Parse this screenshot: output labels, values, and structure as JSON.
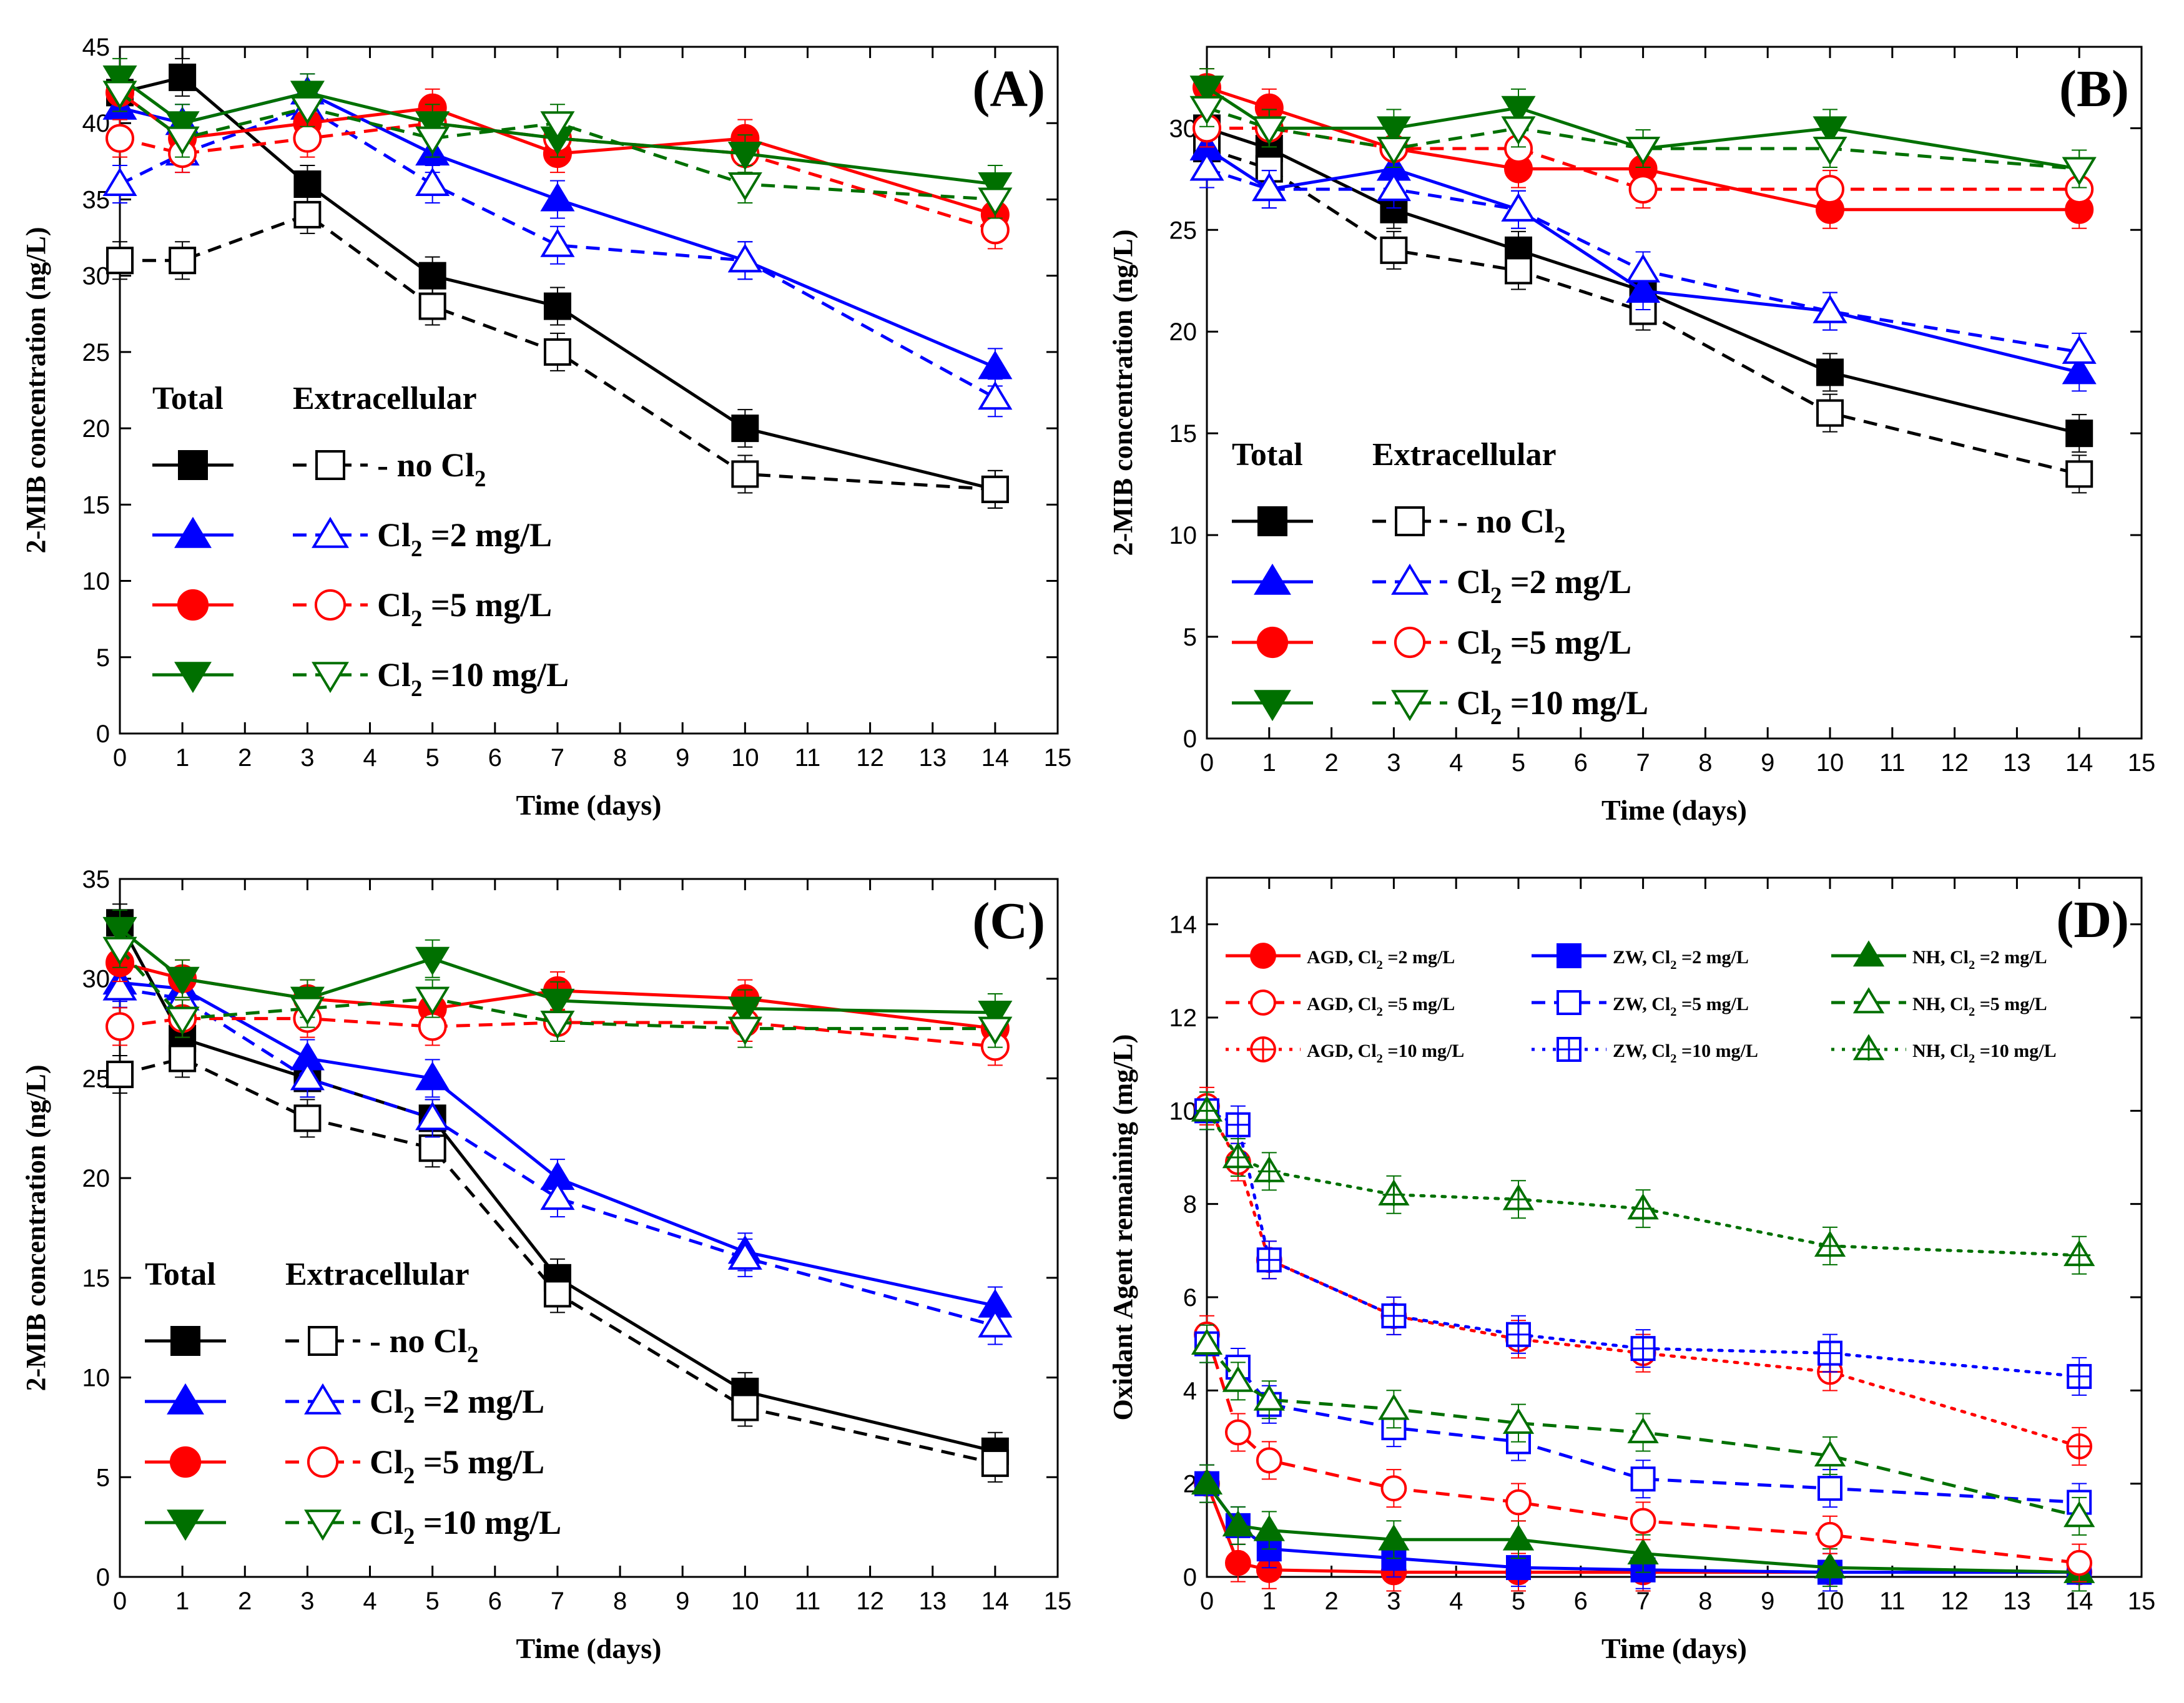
{
  "colors": {
    "no_cl": "#000000",
    "cl2": "#0000ff",
    "cl5": "#ff0000",
    "cl10": "#007000"
  },
  "chart_data": [
    {
      "id": "A",
      "type": "line",
      "panel_label": "(A)",
      "xlabel": "Time (days)",
      "ylabel": "2-MIB concentration (ng/L)",
      "xlim": [
        0,
        15
      ],
      "ylim": [
        0,
        45
      ],
      "xticks": [
        0,
        1,
        2,
        3,
        4,
        5,
        6,
        7,
        8,
        9,
        10,
        11,
        12,
        13,
        14,
        15
      ],
      "yticks": [
        0,
        5,
        10,
        15,
        20,
        25,
        30,
        35,
        40,
        45
      ],
      "x": [
        0,
        1,
        3,
        5,
        7,
        10,
        14
      ],
      "legend": {
        "header_total": "Total",
        "header_extracellular": "Extracellular",
        "placement": "lower-left",
        "labels": [
          "no Cl",
          "Cl =2 mg/L",
          "Cl =5 mg/L",
          "Cl =10 mg/L"
        ],
        "subscript": "2"
      },
      "series": [
        {
          "name": "Total, no Cl2",
          "color": "no_cl",
          "marker": "square",
          "filled": true,
          "dash": "solid",
          "values": [
            42,
            43,
            36,
            30,
            28,
            20,
            16
          ]
        },
        {
          "name": "Extracellular, no Cl2",
          "color": "no_cl",
          "marker": "square",
          "filled": false,
          "dash": "dashed",
          "values": [
            31,
            31,
            34,
            28,
            25,
            17,
            16
          ]
        },
        {
          "name": "Total, Cl2 =2 mg/L",
          "color": "cl2",
          "marker": "tri-up",
          "filled": true,
          "dash": "solid",
          "values": [
            41,
            40,
            42,
            38,
            35,
            31,
            24
          ]
        },
        {
          "name": "Extracellular, Cl2 =2 mg/L",
          "color": "cl2",
          "marker": "tri-up",
          "filled": false,
          "dash": "dashed",
          "values": [
            36,
            38,
            41,
            36,
            32,
            31,
            22
          ]
        },
        {
          "name": "Total, Cl2 =5 mg/L",
          "color": "cl5",
          "marker": "circle",
          "filled": true,
          "dash": "solid",
          "values": [
            42,
            39,
            40,
            41,
            38,
            39,
            34
          ]
        },
        {
          "name": "Extracellular, Cl2 =5 mg/L",
          "color": "cl5",
          "marker": "circle",
          "filled": false,
          "dash": "dashed",
          "values": [
            39,
            38,
            39,
            40,
            39,
            38,
            33
          ]
        },
        {
          "name": "Total, Cl2 =10 mg/L",
          "color": "cl10",
          "marker": "tri-down",
          "filled": true,
          "dash": "solid",
          "values": [
            43,
            40,
            42,
            40,
            39,
            38,
            36
          ]
        },
        {
          "name": "Extracellular, Cl2 =10 mg/L",
          "color": "cl10",
          "marker": "tri-down",
          "filled": false,
          "dash": "dashed",
          "values": [
            42,
            39,
            41,
            39,
            40,
            36,
            35
          ]
        }
      ]
    },
    {
      "id": "B",
      "type": "line",
      "panel_label": "(B)",
      "xlabel": "Time (days)",
      "ylabel": "2-MIB concentration (ng/L)",
      "xlim": [
        0,
        15
      ],
      "ylim": [
        0,
        34
      ],
      "xticks": [
        0,
        1,
        2,
        3,
        4,
        5,
        6,
        7,
        8,
        9,
        10,
        11,
        12,
        13,
        14,
        15
      ],
      "yticks": [
        0,
        5,
        10,
        15,
        20,
        25,
        30
      ],
      "x": [
        0,
        1,
        3,
        5,
        7,
        10,
        14
      ],
      "legend": {
        "header_total": "Total",
        "header_extracellular": "Extracellular",
        "placement": "lower-left",
        "labels": [
          "no Cl",
          "Cl =2 mg/L",
          "Cl =5 mg/L",
          "Cl =10 mg/L"
        ],
        "subscript": "2"
      },
      "series": [
        {
          "name": "Total, no Cl2",
          "color": "no_cl",
          "marker": "square",
          "filled": true,
          "dash": "solid",
          "values": [
            30,
            29,
            26,
            24,
            22,
            18,
            15
          ]
        },
        {
          "name": "Extracellular, no Cl2",
          "color": "no_cl",
          "marker": "square",
          "filled": false,
          "dash": "dashed",
          "values": [
            29,
            28,
            24,
            23,
            21,
            16,
            13
          ]
        },
        {
          "name": "Total, Cl2 =2 mg/L",
          "color": "cl2",
          "marker": "tri-up",
          "filled": true,
          "dash": "solid",
          "values": [
            29,
            27,
            28,
            26,
            22,
            21,
            18
          ]
        },
        {
          "name": "Extracellular, Cl2 =2 mg/L",
          "color": "cl2",
          "marker": "tri-up",
          "filled": false,
          "dash": "dashed",
          "values": [
            28,
            27,
            27,
            26,
            23,
            21,
            19
          ]
        },
        {
          "name": "Total, Cl2 =5 mg/L",
          "color": "cl5",
          "marker": "circle",
          "filled": true,
          "dash": "solid",
          "values": [
            32,
            31,
            29,
            28,
            28,
            26,
            26
          ]
        },
        {
          "name": "Extracellular, Cl2 =5 mg/L",
          "color": "cl5",
          "marker": "circle",
          "filled": false,
          "dash": "dashed",
          "values": [
            30,
            30,
            29,
            29,
            27,
            27,
            27
          ]
        },
        {
          "name": "Total, Cl2 =10 mg/L",
          "color": "cl10",
          "marker": "tri-down",
          "filled": true,
          "dash": "solid",
          "values": [
            32,
            30,
            30,
            31,
            29,
            30,
            28
          ]
        },
        {
          "name": "Extracellular, Cl2 =10 mg/L",
          "color": "cl10",
          "marker": "tri-down",
          "filled": false,
          "dash": "dashed",
          "values": [
            31,
            30,
            29,
            30,
            29,
            29,
            28
          ]
        }
      ]
    },
    {
      "id": "C",
      "type": "line",
      "panel_label": "(C)",
      "xlabel": "Time (days)",
      "ylabel": "2-MIB concentration (ng/L)",
      "xlim": [
        0,
        15
      ],
      "ylim": [
        0,
        35
      ],
      "xticks": [
        0,
        1,
        2,
        3,
        4,
        5,
        6,
        7,
        8,
        9,
        10,
        11,
        12,
        13,
        14,
        15
      ],
      "yticks": [
        0,
        5,
        10,
        15,
        20,
        25,
        30,
        35
      ],
      "x": [
        0,
        1,
        3,
        5,
        7,
        10,
        14
      ],
      "legend": {
        "header_total": "Total",
        "header_extracellular": "Extracellular",
        "placement": "lower-left",
        "labels": [
          "no Cl",
          "Cl =2 mg/L",
          "Cl =5 mg/L",
          "Cl =10 mg/L"
        ],
        "subscript": "2"
      },
      "series": [
        {
          "name": "Total, no Cl2",
          "color": "no_cl",
          "marker": "square",
          "filled": true,
          "dash": "solid",
          "values": [
            32.8,
            27,
            25,
            23,
            15,
            9.3,
            6.3
          ]
        },
        {
          "name": "Extracellular, no Cl2",
          "color": "no_cl",
          "marker": "square",
          "filled": false,
          "dash": "dashed",
          "values": [
            25.2,
            26,
            23,
            21.5,
            14.2,
            8.5,
            5.7
          ]
        },
        {
          "name": "Total, Cl2 =2 mg/L",
          "color": "cl2",
          "marker": "tri-up",
          "filled": true,
          "dash": "solid",
          "values": [
            29.8,
            29.5,
            26,
            25,
            20,
            16.3,
            13.6
          ]
        },
        {
          "name": "Extracellular, Cl2 =2 mg/L",
          "color": "cl2",
          "marker": "tri-up",
          "filled": false,
          "dash": "dashed",
          "values": [
            29.5,
            29,
            25,
            23,
            19,
            16,
            12.6
          ]
        },
        {
          "name": "Total, Cl2 =5 mg/L",
          "color": "cl5",
          "marker": "circle",
          "filled": true,
          "dash": "solid",
          "values": [
            30.8,
            30,
            29,
            28.5,
            29.4,
            29,
            27.5
          ]
        },
        {
          "name": "Extracellular, Cl2 =5 mg/L",
          "color": "cl5",
          "marker": "circle",
          "filled": false,
          "dash": "dashed",
          "values": [
            27.6,
            28,
            28,
            27.6,
            27.8,
            27.8,
            26.6
          ]
        },
        {
          "name": "Total, Cl2 =10 mg/L",
          "color": "cl10",
          "marker": "tri-down",
          "filled": true,
          "dash": "solid",
          "values": [
            32.5,
            30,
            29,
            31,
            28.9,
            28.5,
            28.3
          ]
        },
        {
          "name": "Extracellular, Cl2 =10 mg/L",
          "color": "cl10",
          "marker": "tri-down",
          "filled": false,
          "dash": "dashed",
          "values": [
            31.5,
            28,
            28.5,
            29,
            27.8,
            27.5,
            27.5
          ]
        }
      ]
    },
    {
      "id": "D",
      "type": "line",
      "panel_label": "(D)",
      "xlabel": "Time (days)",
      "ylabel": "Oxidant Agent remaining (mg/L)",
      "xlim": [
        0,
        15
      ],
      "ylim": [
        0,
        15
      ],
      "xticks": [
        0,
        1,
        2,
        3,
        4,
        5,
        6,
        7,
        8,
        9,
        10,
        11,
        12,
        13,
        14,
        15
      ],
      "yticks": [
        0,
        2,
        4,
        6,
        8,
        10,
        12,
        14
      ],
      "x": [
        0,
        0.5,
        1,
        3,
        5,
        7,
        10,
        14
      ],
      "legend": {
        "placement": "top",
        "labels": [
          "AGD, Cl =2 mg/L",
          "ZW, Cl =2 mg/L",
          "NH, Cl =2 mg/L",
          "AGD, Cl =5 mg/L",
          "ZW, Cl =5 mg/L",
          "NH, Cl =5 mg/L",
          "AGD, Cl =10 mg/L",
          "ZW, Cl =10 mg/L",
          "NH, Cl =10 mg/L"
        ],
        "subscript": "2"
      },
      "series": [
        {
          "name": "AGD, Cl2 =2 mg/L",
          "color": "cl5",
          "marker": "circle",
          "style": "filled",
          "dash": "solid",
          "values": [
            2.0,
            0.3,
            0.15,
            0.1,
            0.1,
            0.1,
            0.1,
            0.1
          ]
        },
        {
          "name": "ZW, Cl2 =2 mg/L",
          "color": "cl2",
          "marker": "square",
          "style": "filled",
          "dash": "solid",
          "values": [
            2.0,
            1.1,
            0.6,
            0.4,
            0.2,
            0.15,
            0.1,
            0.1
          ]
        },
        {
          "name": "NH, Cl2 =2 mg/L",
          "color": "cl10",
          "marker": "tri-up",
          "style": "filled",
          "dash": "solid",
          "values": [
            2.0,
            1.1,
            1.0,
            0.8,
            0.8,
            0.5,
            0.2,
            0.1
          ]
        },
        {
          "name": "AGD, Cl2 =5 mg/L",
          "color": "cl5",
          "marker": "circle",
          "style": "open",
          "dash": "dashed",
          "values": [
            5.2,
            3.1,
            2.5,
            1.9,
            1.6,
            1.2,
            0.9,
            0.3
          ]
        },
        {
          "name": "ZW, Cl2 =5 mg/L",
          "color": "cl2",
          "marker": "square",
          "style": "open",
          "dash": "dashed",
          "values": [
            5.0,
            4.5,
            3.7,
            3.2,
            2.9,
            2.1,
            1.9,
            1.6
          ]
        },
        {
          "name": "NH, Cl2 =5 mg/L",
          "color": "cl10",
          "marker": "tri-up",
          "style": "open",
          "dash": "dashed",
          "values": [
            5.0,
            4.2,
            3.8,
            3.6,
            3.3,
            3.1,
            2.6,
            1.3
          ]
        },
        {
          "name": "AGD, Cl2 =10 mg/L",
          "color": "cl5",
          "marker": "circle",
          "style": "cross",
          "dash": "dotted",
          "values": [
            10.1,
            8.9,
            6.8,
            5.6,
            5.1,
            4.8,
            4.4,
            2.8
          ]
        },
        {
          "name": "ZW, Cl2 =10 mg/L",
          "color": "cl2",
          "marker": "square",
          "style": "cross",
          "dash": "dotted",
          "values": [
            10.0,
            9.7,
            6.8,
            5.6,
            5.2,
            4.9,
            4.8,
            4.3
          ]
        },
        {
          "name": "NH, Cl2 =10 mg/L",
          "color": "cl10",
          "marker": "tri-up",
          "style": "cross",
          "dash": "dotted",
          "values": [
            10.0,
            9.0,
            8.7,
            8.2,
            8.1,
            7.9,
            7.1,
            6.9
          ]
        }
      ]
    }
  ]
}
